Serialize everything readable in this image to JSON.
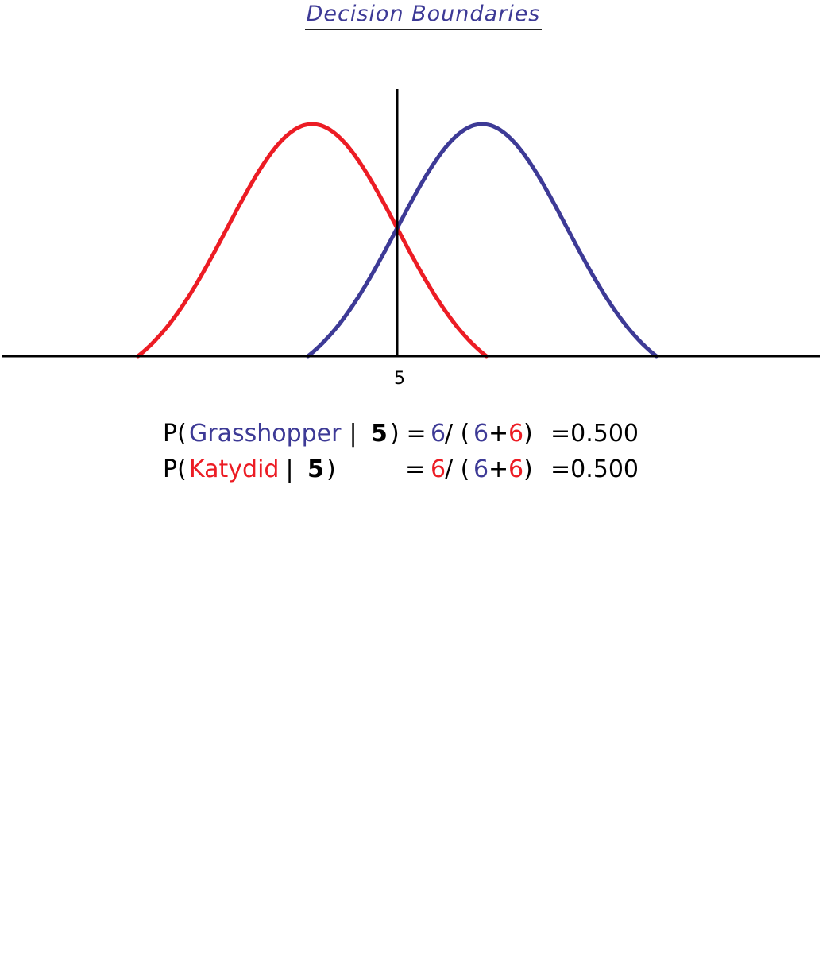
{
  "title": "Decision Boundaries",
  "colors": {
    "katydid": "#ec1c24",
    "grasshopper": "#3d3a96",
    "axis": "#000000",
    "title": "#3d3a96"
  },
  "axis": {
    "tick_label": "5"
  },
  "curves": [
    {
      "name": "katydid",
      "color": "#ec1c24",
      "peak_at": 4,
      "spread": 1
    },
    {
      "name": "grasshopper",
      "color": "#3d3a96",
      "peak_at": 6,
      "spread": 1
    }
  ],
  "equations": {
    "line1": {
      "p_open": "P(",
      "class": "Grasshopper",
      "bar": " | ",
      "value": "5",
      "close": ")",
      "eq": " = ",
      "num": "6",
      "slash": "/ (",
      "d1": "6",
      "plus": "+",
      "d2": "6",
      "rparen": ")",
      "result": "=0.500"
    },
    "line2": {
      "p_open": "P(",
      "class": "Katydid",
      "bar": " | ",
      "value": "5",
      "close": ")",
      "eq": "= ",
      "num": "6",
      "slash": "/ (",
      "d1": "6",
      "plus": "+",
      "d2": "6",
      "rparen": ")",
      "result": "=0.500"
    }
  }
}
